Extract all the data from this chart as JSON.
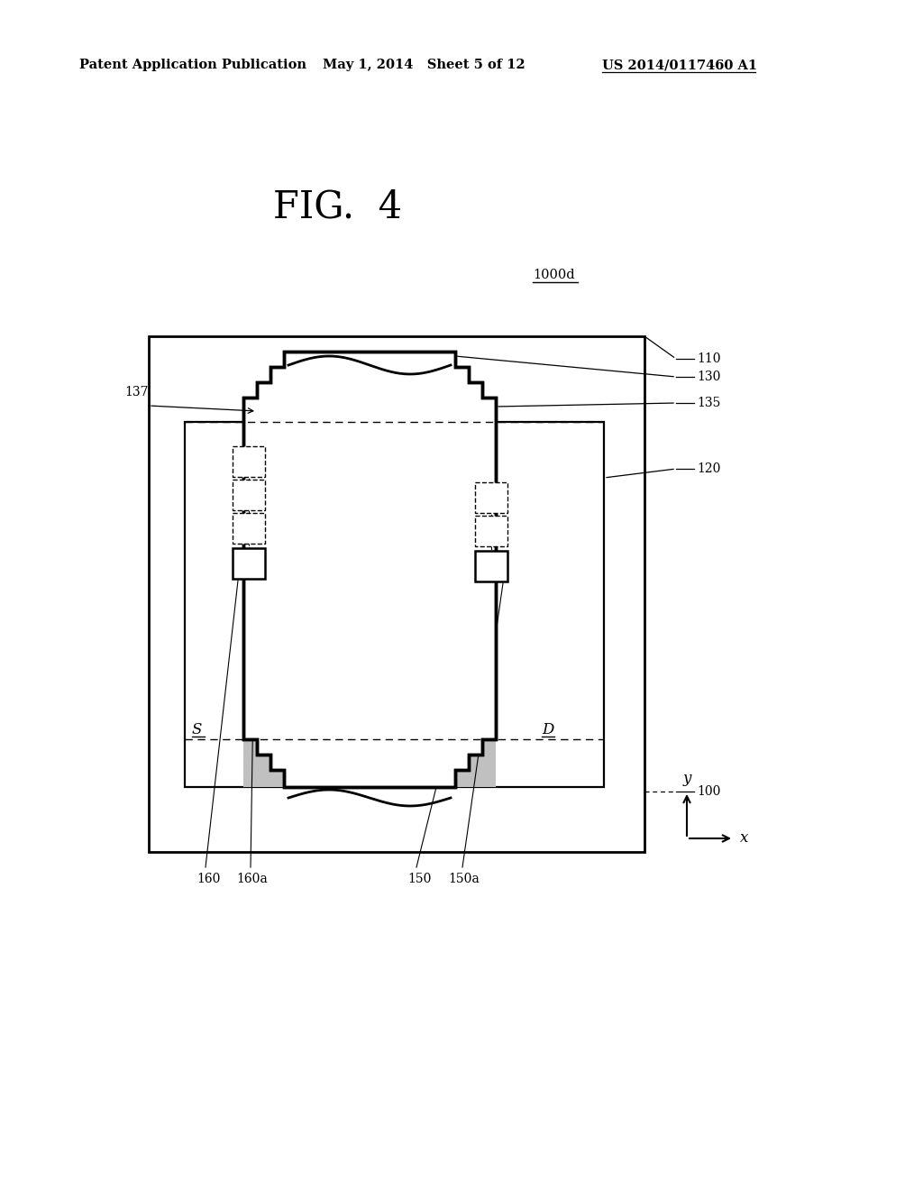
{
  "bg_color": "#ffffff",
  "line_color": "#000000",
  "gray_fill": "#c0c0c0",
  "header_left": "Patent Application Publication",
  "header_mid": "May 1, 2014   Sheet 5 of 12",
  "header_right": "US 2014/0117460 A1",
  "fig_title": "FIG.  4"
}
